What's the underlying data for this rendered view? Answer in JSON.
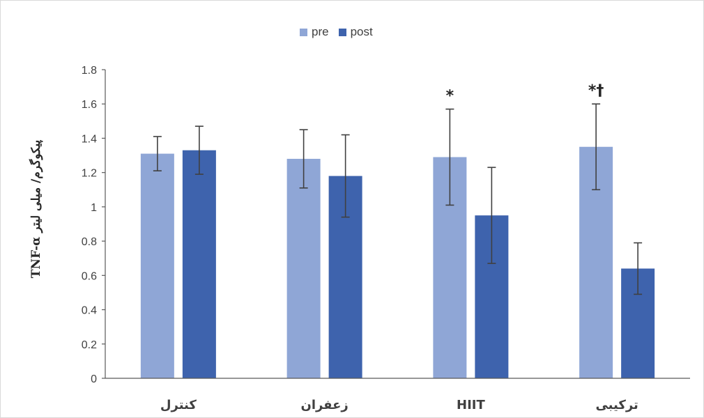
{
  "chart_data": {
    "type": "bar",
    "categories": [
      "کنترل",
      "زعفران",
      "HIIT",
      "ترکیبی"
    ],
    "series": [
      {
        "name": "pre",
        "values": [
          1.31,
          1.28,
          1.29,
          1.35
        ],
        "error": [
          0.1,
          0.17,
          0.28,
          0.25
        ],
        "color": "#8FA6D6"
      },
      {
        "name": "post",
        "values": [
          1.33,
          1.18,
          0.95,
          0.64
        ],
        "error": [
          0.14,
          0.24,
          0.28,
          0.15
        ],
        "color": "#3E63AD"
      }
    ],
    "annotations": [
      "",
      "",
      "*",
      "*†"
    ],
    "ylabel": "TNF-α پیکوگرم/ میلی لیتر",
    "ylim": [
      0,
      1.8
    ],
    "yticks": [
      "0",
      "0.2",
      "0.4",
      "0.6",
      "0.8",
      "1",
      "1.2",
      "1.4",
      "1.6",
      "1.8"
    ],
    "grid": false,
    "legend_position": "top-center"
  }
}
